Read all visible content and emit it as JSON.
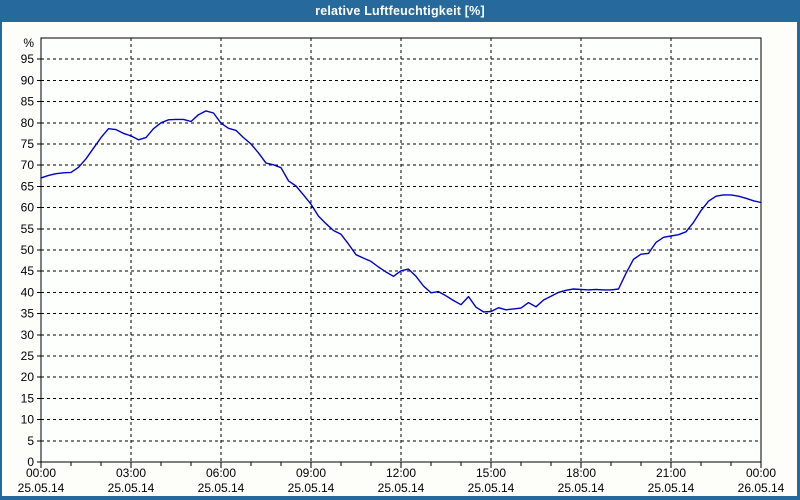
{
  "window": {
    "title": "relative Luftfeuchtigkeit [%]"
  },
  "colors": {
    "frame": "#26699c",
    "title_text": "#ffffff",
    "content_bg": "#fdfdfa",
    "plot_bg": "#fdfffd",
    "grid": "#000000",
    "axis": "#000000",
    "line": "#0000c8",
    "label_text": "#000000"
  },
  "chart_data": {
    "type": "line",
    "title": "relative Luftfeuchtigkeit [%]",
    "ylabel": "%",
    "ylim": [
      0,
      100
    ],
    "grid": true,
    "legend": "none",
    "x_range_hours": [
      0,
      24
    ],
    "y_ticks": [
      0,
      5,
      10,
      15,
      20,
      25,
      30,
      35,
      40,
      45,
      50,
      55,
      60,
      65,
      70,
      75,
      80,
      85,
      90,
      95
    ],
    "x_ticks": [
      {
        "hour": 0,
        "label": "00:00",
        "date": "25.05.14"
      },
      {
        "hour": 3,
        "label": "03:00",
        "date": "25.05.14"
      },
      {
        "hour": 6,
        "label": "06:00",
        "date": "25.05.14"
      },
      {
        "hour": 9,
        "label": "09:00",
        "date": "25.05.14"
      },
      {
        "hour": 12,
        "label": "12:00",
        "date": "25.05.14"
      },
      {
        "hour": 15,
        "label": "15:00",
        "date": "25.05.14"
      },
      {
        "hour": 18,
        "label": "18:00",
        "date": "25.05.14"
      },
      {
        "hour": 21,
        "label": "21:00",
        "date": "25.05.14"
      },
      {
        "hour": 24,
        "label": "00:00",
        "date": "26.05.14"
      }
    ],
    "series": [
      {
        "name": "relative Luftfeuchtigkeit [%]",
        "color": "#0000c8",
        "start_hour": 0,
        "interval_hours": 0.25,
        "values": [
          67.0,
          67.6,
          68.0,
          68.2,
          68.3,
          69.5,
          71.5,
          74.0,
          76.5,
          78.6,
          78.4,
          77.5,
          76.9,
          76.0,
          76.5,
          78.6,
          80.0,
          80.7,
          80.8,
          80.8,
          80.3,
          81.9,
          82.8,
          82.3,
          79.9,
          78.7,
          78.2,
          76.5,
          75.0,
          72.9,
          70.5,
          70.1,
          69.4,
          66.3,
          65.1,
          63.0,
          60.8,
          58.0,
          56.2,
          54.6,
          53.7,
          51.4,
          48.9,
          48.1,
          47.3,
          46.0,
          44.8,
          43.8,
          45.1,
          45.5,
          43.8,
          41.5,
          39.9,
          40.2,
          39.2,
          38.1,
          37.1,
          39.0,
          36.5,
          35.4,
          35.5,
          36.4,
          35.9,
          36.1,
          36.3,
          37.6,
          36.6,
          38.2,
          39.1,
          40.0,
          40.5,
          40.8,
          40.7,
          40.6,
          40.7,
          40.6,
          40.6,
          40.8,
          44.5,
          47.8,
          49.0,
          49.2,
          51.8,
          53.0,
          53.3,
          53.6,
          54.3,
          56.5,
          59.3,
          61.5,
          62.7,
          63.0,
          63.0,
          62.7,
          62.2,
          61.6,
          61.2
        ]
      }
    ]
  }
}
